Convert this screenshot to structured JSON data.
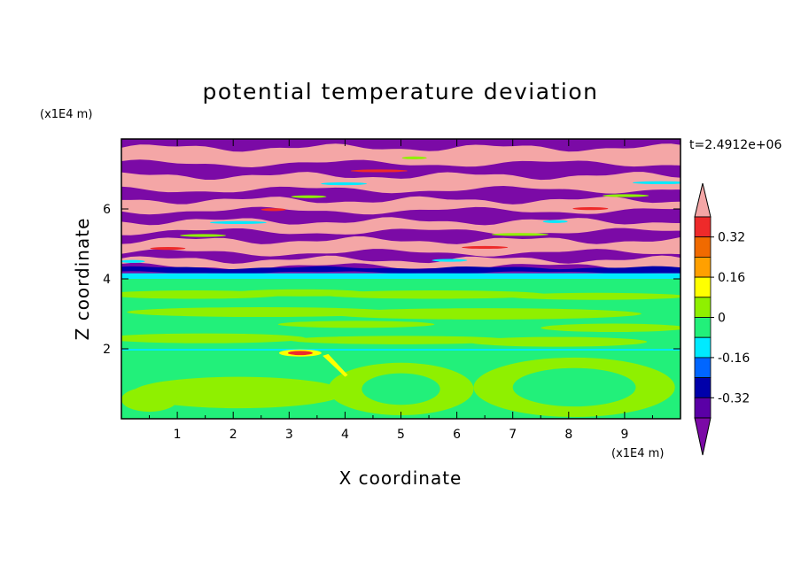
{
  "chart_data": {
    "type": "heatmap",
    "title": "potential temperature deviation",
    "xlabel": "X coordinate",
    "ylabel": "Z coordinate",
    "x_unit": "(x1E4 m)",
    "y_unit": "(x1E4 m)",
    "time_label": "t=2.4912e+06",
    "xlim": [
      0,
      10
    ],
    "ylim": [
      0,
      8
    ],
    "x_ticks": [
      "1",
      "2",
      "3",
      "4",
      "5",
      "6",
      "7",
      "8",
      "9"
    ],
    "y_ticks": [
      "2",
      "4",
      "6"
    ],
    "colorbar": {
      "levels": [
        -0.48,
        -0.4,
        -0.32,
        -0.24,
        -0.16,
        -0.08,
        0,
        0.08,
        0.16,
        0.24,
        0.32,
        0.4,
        0.48
      ],
      "tick_labels": [
        "0.32",
        "0.16",
        "0",
        "-0.16",
        "-0.32"
      ],
      "colors_top_to_bottom": [
        "#f4a6a6",
        "#ee2a2a",
        "#f06a00",
        "#ffa000",
        "#ffff00",
        "#8ff000",
        "#22f07a",
        "#00eaff",
        "#0066ff",
        "#0000aa",
        "#5a00a6",
        "#7b0aa6"
      ],
      "extend": "both"
    },
    "regions": [
      {
        "description": "alternating bands",
        "z_range": [
          4.1,
          8.0
        ],
        "values": [
          0.5,
          -0.5
        ]
      },
      {
        "description": "dark blue layer",
        "z_range": [
          4.1,
          4.3
        ],
        "value": -0.36
      },
      {
        "description": "cyan layer",
        "z_range": [
          4.0,
          4.1
        ],
        "value": -0.12
      },
      {
        "description": "near-zero field",
        "z_range": [
          0,
          4.0
        ],
        "values": [
          -0.04,
          0.04
        ]
      }
    ]
  }
}
